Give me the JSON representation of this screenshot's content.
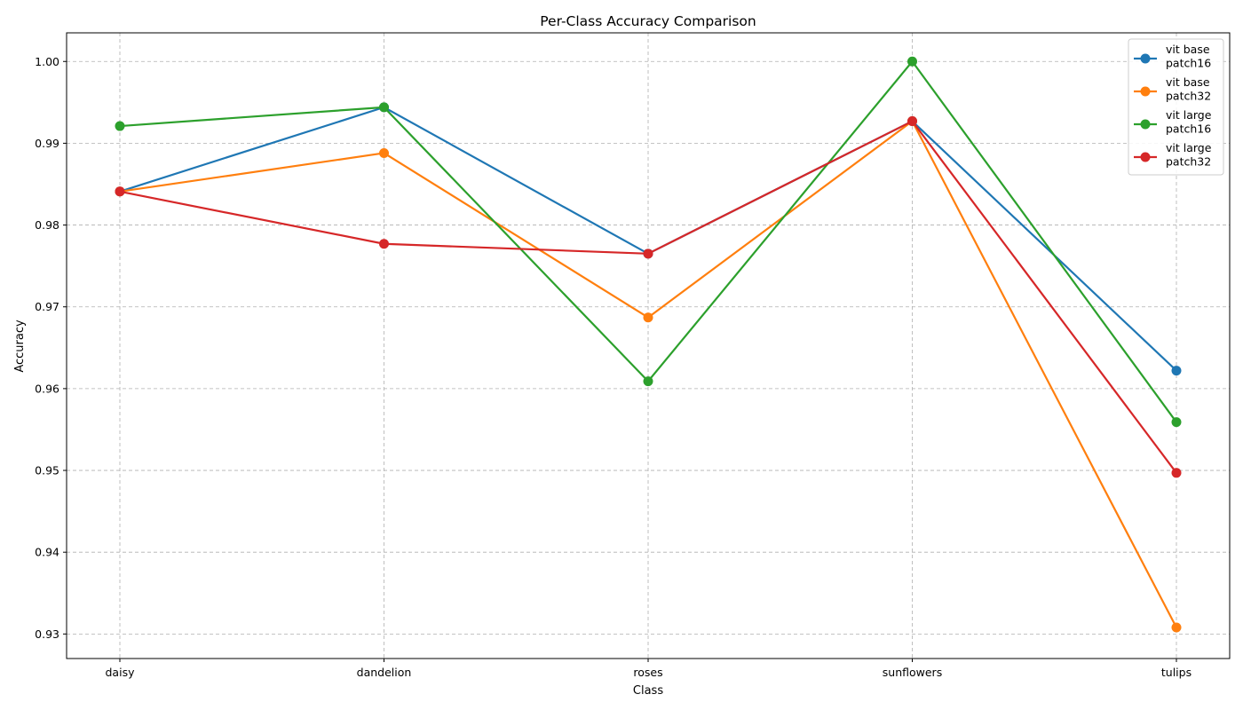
{
  "chart_data": {
    "type": "line",
    "title": "Per-Class Accuracy Comparison",
    "xlabel": "Class",
    "ylabel": "Accuracy",
    "categories": [
      "daisy",
      "dandelion",
      "roses",
      "sunflowers",
      "tulips"
    ],
    "ylim": [
      0.927,
      1.0035
    ],
    "yticks": [
      "0.93",
      "0.94",
      "0.95",
      "0.96",
      "0.97",
      "0.98",
      "0.99",
      "1.00"
    ],
    "grid": true,
    "legend_position": "top-right",
    "series": [
      {
        "name": "vit base patch16",
        "legend_lines": [
          "vit base",
          "patch16"
        ],
        "color": "#1f77b4",
        "values": [
          0.9841,
          0.9944,
          0.9765,
          0.9927,
          0.9622
        ]
      },
      {
        "name": "vit base patch32",
        "legend_lines": [
          "vit base",
          "patch32"
        ],
        "color": "#ff7f0e",
        "values": [
          0.9841,
          0.9888,
          0.9687,
          0.9927,
          0.9308
        ]
      },
      {
        "name": "vit large patch16",
        "legend_lines": [
          "vit large",
          "patch16"
        ],
        "color": "#2ca02c",
        "values": [
          0.9921,
          0.9944,
          0.9609,
          1.0,
          0.9559
        ]
      },
      {
        "name": "vit large patch32",
        "legend_lines": [
          "vit large",
          "patch32"
        ],
        "color": "#d62728",
        "values": [
          0.9841,
          0.9777,
          0.9765,
          0.9927,
          0.9497
        ]
      }
    ]
  }
}
